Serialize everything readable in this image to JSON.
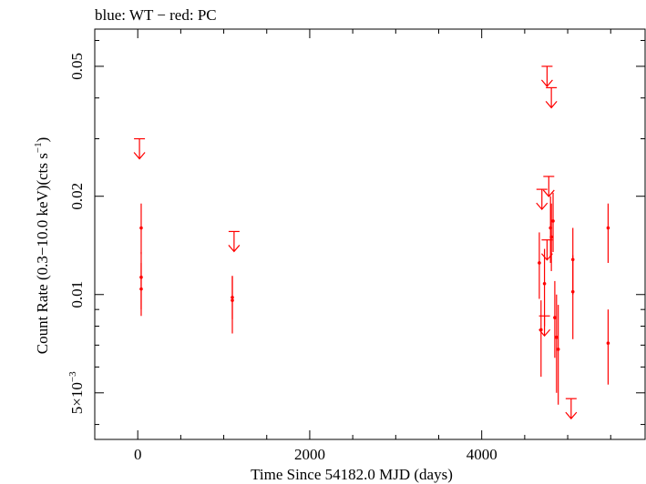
{
  "chart_data": {
    "type": "scatter",
    "title": "blue: WT − red: PC",
    "xlabel": "Time Since 54182.0 MJD (days)",
    "ylabel_main": "Count Rate (0.3−10.0 keV)(cts s",
    "ylabel_sup": "−1",
    "ylabel_end": ")",
    "xlim": [
      -500,
      5900
    ],
    "ylim": [
      0.0036,
      0.065
    ],
    "y_scale": "log",
    "x_ticks": [
      0,
      2000,
      4000
    ],
    "x_tick_labels": [
      "0",
      "2000",
      "4000"
    ],
    "y_ticks": [
      0.005,
      0.01,
      0.02,
      0.05
    ],
    "y_tick_labels": [
      {
        "base": "5×10",
        "exp": "−3"
      },
      {
        "base": "0.01",
        "exp": ""
      },
      {
        "base": "0.02",
        "exp": ""
      },
      {
        "base": "0.05",
        "exp": ""
      }
    ],
    "colors": {
      "pc": "#ff0000",
      "axes": "#000000"
    },
    "series": [
      {
        "name": "PC",
        "points": [
          {
            "x": 40,
            "y": 0.016,
            "ylo": 0.0133,
            "yhi": 0.019,
            "xerr": 4
          },
          {
            "x": 40,
            "y": 0.0113,
            "ylo": 0.009,
            "yhi": 0.0135,
            "xerr": 4
          },
          {
            "x": 40,
            "y": 0.0104,
            "ylo": 0.0086,
            "yhi": 0.0125,
            "xerr": 4
          },
          {
            "x": 1100,
            "y": 0.0098,
            "ylo": 0.0084,
            "yhi": 0.0114,
            "xerr": 4
          },
          {
            "x": 1100,
            "y": 0.0096,
            "ylo": 0.0076,
            "yhi": 0.0114,
            "xerr": 4
          },
          {
            "x": 4670,
            "y": 0.0125,
            "ylo": 0.0097,
            "yhi": 0.0155,
            "xerr": 6
          },
          {
            "x": 4690,
            "y": 0.0078,
            "ylo": 0.0056,
            "yhi": 0.0096,
            "xerr": 6
          },
          {
            "x": 4730,
            "y": 0.0108,
            "ylo": 0.008,
            "yhi": 0.0138,
            "xerr": 6
          },
          {
            "x": 4800,
            "y": 0.016,
            "ylo": 0.0125,
            "yhi": 0.02,
            "xerr": 6
          },
          {
            "x": 4810,
            "y": 0.015,
            "ylo": 0.0118,
            "yhi": 0.019,
            "xerr": 6
          },
          {
            "x": 4830,
            "y": 0.0168,
            "ylo": 0.0135,
            "yhi": 0.0205,
            "xerr": 6
          },
          {
            "x": 4850,
            "y": 0.0085,
            "ylo": 0.0064,
            "yhi": 0.011,
            "xerr": 6
          },
          {
            "x": 4870,
            "y": 0.0074,
            "ylo": 0.005,
            "yhi": 0.01,
            "xerr": 6
          },
          {
            "x": 4890,
            "y": 0.0068,
            "ylo": 0.0046,
            "yhi": 0.0093,
            "xerr": 6
          },
          {
            "x": 5060,
            "y": 0.0128,
            "ylo": 0.01,
            "yhi": 0.016,
            "xerr": 6
          },
          {
            "x": 5060,
            "y": 0.0102,
            "ylo": 0.0073,
            "yhi": 0.0132,
            "xerr": 6
          },
          {
            "x": 5470,
            "y": 0.016,
            "ylo": 0.0125,
            "yhi": 0.019,
            "xerr": 6
          },
          {
            "x": 5470,
            "y": 0.0071,
            "ylo": 0.0053,
            "yhi": 0.009,
            "xerr": 6
          }
        ],
        "upper_limits": [
          {
            "x": 20,
            "y": 0.03
          },
          {
            "x": 1120,
            "y": 0.0156
          },
          {
            "x": 4700,
            "y": 0.021
          },
          {
            "x": 4760,
            "y": 0.05
          },
          {
            "x": 4780,
            "y": 0.023
          },
          {
            "x": 4760,
            "y": 0.0147
          },
          {
            "x": 4810,
            "y": 0.043
          },
          {
            "x": 4730,
            "y": 0.0086
          },
          {
            "x": 5040,
            "y": 0.0048
          }
        ]
      }
    ]
  }
}
